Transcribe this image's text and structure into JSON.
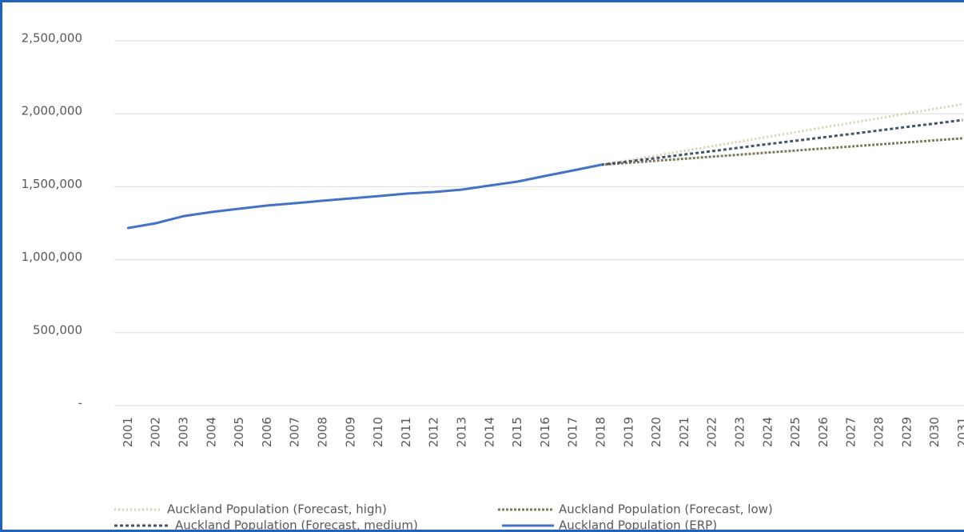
{
  "chart_data": {
    "type": "line",
    "categories": [
      "2001",
      "2002",
      "2003",
      "2004",
      "2005",
      "2006",
      "2007",
      "2008",
      "2009",
      "2010",
      "2011",
      "2012",
      "2013",
      "2014",
      "2015",
      "2016",
      "2017",
      "2018",
      "2019",
      "2020",
      "2021",
      "2022",
      "2023",
      "2024",
      "2025",
      "2026",
      "2027",
      "2028",
      "2029",
      "2030",
      "2031"
    ],
    "ylim": [
      0,
      2500000
    ],
    "yticks": [
      {
        "value": 0,
        "label": "-"
      },
      {
        "value": 500000,
        "label": "500,000"
      },
      {
        "value": 1000000,
        "label": "1,000,000"
      },
      {
        "value": 1500000,
        "label": "1,500,000"
      },
      {
        "value": 2000000,
        "label": "2,000,000"
      },
      {
        "value": 2500000,
        "label": "2,500,000"
      }
    ],
    "grid": true,
    "series": [
      {
        "name": "Auckland Population (Forecast, high)",
        "color": "#d6d0b0",
        "dash": "2,3",
        "values": [
          null,
          null,
          null,
          null,
          null,
          null,
          null,
          null,
          null,
          null,
          null,
          null,
          null,
          null,
          null,
          null,
          null,
          1650000,
          1682000,
          1714000,
          1746000,
          1778000,
          1810000,
          1842000,
          1874000,
          1906000,
          1938000,
          1970000,
          2002000,
          2034000,
          2066000
        ]
      },
      {
        "name": "Auckland Population (Forecast, low)",
        "color": "#7b7a5c",
        "dash": "3,2",
        "values": [
          null,
          null,
          null,
          null,
          null,
          null,
          null,
          null,
          null,
          null,
          null,
          null,
          null,
          null,
          null,
          null,
          null,
          1650000,
          1664000,
          1678000,
          1692000,
          1706000,
          1720000,
          1734000,
          1748000,
          1762000,
          1776000,
          1790000,
          1804000,
          1818000,
          1832000
        ]
      },
      {
        "name": "Auckland Population (Forecast, medium)",
        "color": "#44546a",
        "dash": "4,3",
        "values": [
          null,
          null,
          null,
          null,
          null,
          null,
          null,
          null,
          null,
          null,
          null,
          null,
          null,
          null,
          null,
          null,
          null,
          1650000,
          1674000,
          1697000,
          1721000,
          1744000,
          1768000,
          1792000,
          1815000,
          1839000,
          1862000,
          1886000,
          1910000,
          1933000,
          1957000
        ]
      },
      {
        "name": "Auckland Population (ERP)",
        "color": "#4472c4",
        "dash": "none",
        "values": [
          1217000,
          1250000,
          1299000,
          1327000,
          1349000,
          1371000,
          1387000,
          1404000,
          1420000,
          1436000,
          1453000,
          1464000,
          1480000,
          1508000,
          1535000,
          1574000,
          1612000,
          1650000,
          null,
          null,
          null,
          null,
          null,
          null,
          null,
          null,
          null,
          null,
          null,
          null,
          null
        ]
      }
    ]
  }
}
